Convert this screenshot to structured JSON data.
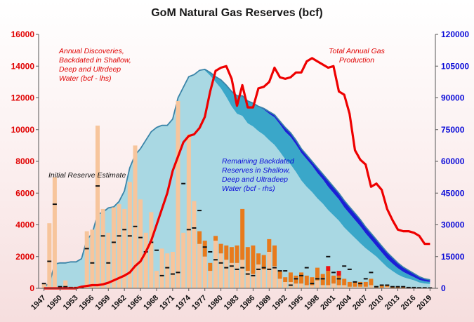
{
  "chart_data": {
    "type": "bar",
    "title": "GoM Natural Gas Reserves (bcf)",
    "y_left": {
      "min": 0,
      "max": 16000,
      "ticks": [
        0,
        2000,
        4000,
        6000,
        8000,
        10000,
        12000,
        14000,
        16000
      ],
      "color": "#e00000"
    },
    "y_right": {
      "min": 0,
      "max": 120000,
      "ticks": [
        0,
        15000,
        30000,
        45000,
        60000,
        75000,
        90000,
        105000,
        120000
      ],
      "color": "#0a0ad8"
    },
    "x_range": [
      1946,
      2020
    ],
    "x_ticks": [
      1947,
      1950,
      1953,
      1956,
      1959,
      1962,
      1965,
      1968,
      1971,
      1974,
      1977,
      1980,
      1983,
      1986,
      1989,
      1992,
      1995,
      1998,
      2001,
      2004,
      2007,
      2010,
      2013,
      2016,
      2019
    ],
    "annotations": {
      "discoveries": [
        "Annual Discoveries,",
        "Backdated in Shallow,",
        "Deep and Ultrdeep",
        "Water (bcf - lhs)"
      ],
      "production": [
        "Total Annual Gas",
        "Production"
      ],
      "initial": [
        "Initial Reserve Estimate"
      ],
      "remaining": [
        "Remaining Backdated",
        "Reserves in Shallow,",
        "Deep and Ultradeep",
        "Water (bcf - rhs)"
      ]
    },
    "series_colors": {
      "shallow": "#f7c59c",
      "deep": "#e87a1c",
      "ultradeep": "#ee1111",
      "initial": "#111111",
      "production": "#ee0000",
      "remaining_shallow": "#a9d8e3",
      "remaining_deep": "#3aa7c9",
      "remaining_ultradeep": "#1a1fd6",
      "remaining_outline": "#3a84a8"
    },
    "years": [
      1947,
      1948,
      1949,
      1950,
      1951,
      1952,
      1953,
      1954,
      1955,
      1956,
      1957,
      1958,
      1959,
      1960,
      1961,
      1962,
      1963,
      1964,
      1965,
      1966,
      1967,
      1968,
      1969,
      1970,
      1971,
      1972,
      1973,
      1974,
      1975,
      1976,
      1977,
      1978,
      1979,
      1980,
      1981,
      1982,
      1983,
      1984,
      1985,
      1986,
      1987,
      1988,
      1989,
      1990,
      1991,
      1992,
      1993,
      1994,
      1995,
      1996,
      1997,
      1998,
      1999,
      2000,
      2001,
      2002,
      2003,
      2004,
      2005,
      2006,
      2007,
      2008,
      2009,
      2010,
      2011,
      2012,
      2013,
      2014,
      2015,
      2016,
      2017,
      2018,
      2019
    ],
    "discoveries_shallow": [
      300,
      4100,
      7000,
      100,
      500,
      0,
      100,
      100,
      3600,
      3700,
      10250,
      5000,
      3500,
      5100,
      5300,
      5000,
      6700,
      9000,
      5600,
      3500,
      4800,
      1100,
      2500,
      2200,
      2300,
      11800,
      3500,
      9700,
      5500,
      2800,
      2000,
      1100,
      3000,
      2200,
      1800,
      1600,
      1600,
      1800,
      1100,
      900,
      1500,
      1200,
      2300,
      1400,
      600,
      400,
      400,
      300,
      300,
      200,
      200,
      500,
      200,
      200,
      300,
      200,
      200,
      100,
      100,
      100,
      100,
      200,
      50,
      50,
      100,
      20,
      20,
      20,
      10,
      10,
      10,
      10,
      10
    ],
    "discoveries_deep": [
      0,
      0,
      0,
      0,
      0,
      0,
      0,
      0,
      0,
      0,
      0,
      0,
      0,
      0,
      0,
      0,
      0,
      0,
      0,
      0,
      0,
      0,
      0,
      0,
      0,
      0,
      0,
      0,
      0,
      800,
      1000,
      500,
      300,
      600,
      900,
      1000,
      1100,
      3200,
      1500,
      1800,
      700,
      900,
      800,
      1300,
      500,
      300,
      600,
      500,
      700,
      600,
      500,
      800,
      700,
      900,
      500,
      600,
      400,
      300,
      300,
      300,
      300,
      400,
      100,
      100,
      100,
      50,
      50,
      50,
      30,
      30,
      30,
      30,
      30
    ],
    "discoveries_ultradeep": [
      0,
      0,
      0,
      0,
      0,
      0,
      0,
      0,
      0,
      0,
      0,
      0,
      0,
      0,
      0,
      0,
      0,
      0,
      0,
      0,
      0,
      0,
      0,
      0,
      0,
      0,
      0,
      0,
      0,
      0,
      0,
      0,
      0,
      0,
      0,
      0,
      0,
      0,
      0,
      0,
      0,
      0,
      0,
      0,
      0,
      0,
      0,
      0,
      0,
      0,
      0,
      0,
      0,
      300,
      0,
      300,
      0,
      0,
      0,
      0,
      0,
      0,
      0,
      0,
      0,
      0,
      0,
      0,
      0,
      0,
      0,
      0,
      0
    ],
    "initial_estimate": [
      300,
      1700,
      5300,
      100,
      100,
      50,
      50,
      50,
      2500,
      1600,
      6450,
      3300,
      1600,
      2900,
      3300,
      3700,
      3300,
      3900,
      3200,
      2300,
      2900,
      2400,
      800,
      1300,
      900,
      1000,
      6600,
      3700,
      3800,
      4900,
      2600,
      2300,
      1800,
      1600,
      1300,
      1400,
      1200,
      1300,
      900,
      800,
      1200,
      1300,
      1200,
      1300,
      1100,
      1100,
      200,
      600,
      800,
      1300,
      300,
      600,
      600,
      2000,
      1000,
      600,
      1400,
      1200,
      400,
      300,
      600,
      1000,
      100,
      200,
      200,
      100,
      100,
      100,
      50,
      50,
      30,
      30,
      20
    ],
    "production": [
      0,
      0,
      0,
      0,
      0,
      0,
      0,
      100,
      150,
      200,
      200,
      250,
      350,
      500,
      650,
      800,
      1000,
      1400,
      1700,
      2300,
      3000,
      4000,
      5000,
      6000,
      7400,
      8300,
      9200,
      9600,
      9700,
      10100,
      10800,
      12400,
      13700,
      13900,
      14000,
      13200,
      11500,
      12800,
      11400,
      11400,
      12600,
      12700,
      13000,
      13900,
      13300,
      13200,
      13300,
      13600,
      13600,
      14300,
      14500,
      14300,
      14100,
      13900,
      14000,
      12400,
      12200,
      11000,
      8700,
      8100,
      7800,
      6400,
      6600,
      6200,
      5000,
      4300,
      3700,
      3600,
      3600,
      3500,
      3300,
      2800,
      2800
    ],
    "remaining_total": [
      1000,
      2200,
      11500,
      12000,
      12000,
      12500,
      12500,
      14000,
      23000,
      26000,
      35000,
      36000,
      38000,
      38500,
      41000,
      46000,
      57000,
      63000,
      66000,
      70000,
      74000,
      76000,
      77000,
      77000,
      80000,
      90000,
      95000,
      100000,
      101000,
      103000,
      103500,
      102000,
      100000,
      98500,
      96000,
      93000,
      91000,
      91000,
      88500,
      87500,
      86000,
      85000,
      83500,
      82000,
      79000,
      76000,
      73500,
      70000,
      66000,
      63000,
      60000,
      57000,
      54000,
      51000,
      48000,
      45000,
      41500,
      38500,
      35500,
      32500,
      29000,
      26000,
      23000,
      20000,
      17000,
      14500,
      12000,
      10000,
      8500,
      7000,
      5500,
      4500,
      4000
    ],
    "remaining_deep": [
      0,
      0,
      0,
      0,
      0,
      0,
      0,
      0,
      0,
      0,
      0,
      0,
      0,
      0,
      0,
      0,
      0,
      0,
      0,
      0,
      0,
      0,
      0,
      0,
      0,
      0,
      0,
      0,
      0,
      0,
      500,
      1500,
      2500,
      4000,
      5500,
      7000,
      8500,
      9500,
      10500,
      11000,
      11500,
      12000,
      12500,
      13000,
      13000,
      13000,
      13000,
      13000,
      13000,
      13000,
      12500,
      12000,
      11500,
      11000,
      10500,
      10000,
      9500,
      9000,
      8500,
      8000,
      7000,
      6000,
      5000,
      4500,
      4000,
      3500,
      3000,
      2500,
      2000,
      1500,
      1200,
      1000,
      900
    ],
    "remaining_ultradeep": [
      0,
      0,
      0,
      0,
      0,
      0,
      0,
      0,
      0,
      0,
      0,
      0,
      0,
      0,
      0,
      0,
      0,
      0,
      0,
      0,
      0,
      0,
      0,
      0,
      0,
      0,
      0,
      0,
      0,
      0,
      0,
      0,
      0,
      0,
      0,
      0,
      0,
      0,
      0,
      0,
      200,
      500,
      1000,
      1200,
      1500,
      2000,
      2000,
      2000,
      2000,
      2000,
      2000,
      2500,
      2500,
      3000,
      3000,
      3000,
      3200,
      3200,
      3200,
      3200,
      3000,
      3000,
      3000,
      3000,
      3000,
      2800,
      2500,
      2200,
      2000,
      1700,
      1500,
      1200,
      1000
    ]
  }
}
